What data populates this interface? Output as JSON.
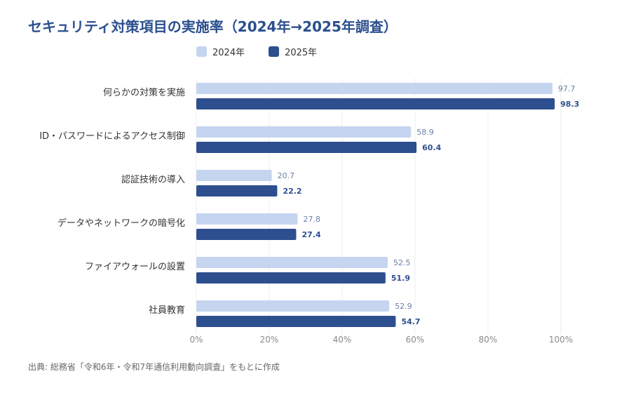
{
  "chart_data": {
    "type": "bar",
    "orientation": "horizontal",
    "title": "セキュリティ対策項目の実施率（2024年→2025年調査）",
    "categories": [
      "何らかの対策を実施",
      "ID・パスワードによるアクセス制御",
      "認証技術の導入",
      "データやネットワークの暗号化",
      "ファイアウォールの設置",
      "社員教育"
    ],
    "series": [
      {
        "name": "2024年",
        "color": "#c5d5f0",
        "label_color": "#6b7fa8",
        "values": [
          97.7,
          58.9,
          20.7,
          27.8,
          52.5,
          52.9
        ]
      },
      {
        "name": "2025年",
        "color": "#2e4f8f",
        "label_color": "#2e4f8f",
        "values": [
          98.3,
          60.4,
          22.2,
          27.4,
          51.9,
          54.7
        ]
      }
    ],
    "xlim": [
      0,
      100
    ],
    "x_ticks": [
      "0%",
      "20%",
      "40%",
      "60%",
      "80%",
      "100%"
    ],
    "grid": "vertical",
    "legend_position": "top",
    "source": "出典: 総務省「令和6年・令和7年通信利用動向調査」をもとに作成"
  }
}
